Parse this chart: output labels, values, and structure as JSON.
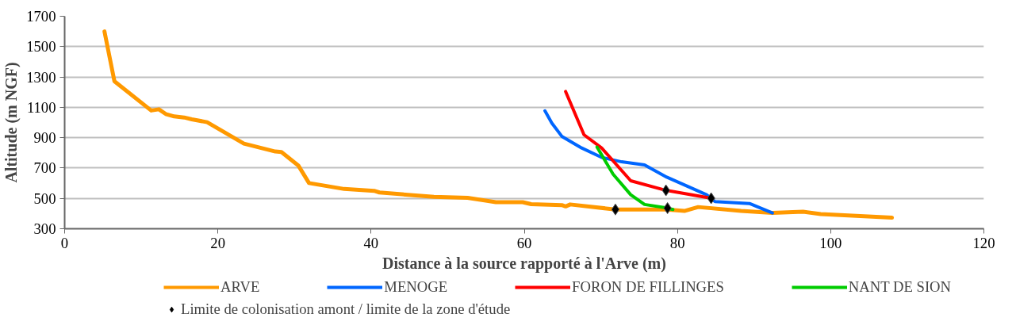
{
  "chart_data": {
    "type": "line",
    "xlabel": "Distance à la source rapporté à l'Arve (m)",
    "ylabel": "Altitude (m NGF)",
    "xlim": [
      0,
      120
    ],
    "xticks": [
      0,
      20,
      40,
      60,
      80,
      100,
      120
    ],
    "ylim": [
      300,
      1700
    ],
    "yticks": [
      300,
      500,
      700,
      900,
      1100,
      1300,
      1500,
      1700
    ],
    "grid": "y",
    "legend": "bottom",
    "line_style": "solid",
    "series": [
      {
        "name": "ARVE",
        "color": "#ff9900",
        "x": [
          5.2,
          6.5,
          11.3,
          12.3,
          13.2,
          14.3,
          15.6,
          16.6,
          18.6,
          23.4,
          27.5,
          28.3,
          30.5,
          31.9,
          36.5,
          40.4,
          41.1,
          48.2,
          52.6,
          56.3,
          59.8,
          60.9,
          64.9,
          65.4,
          66,
          71.9,
          78.6,
          80.9,
          82.7,
          88.3,
          92.4,
          96.4,
          98.7,
          108
        ],
        "values": [
          1600,
          1272,
          1079,
          1087,
          1056,
          1040,
          1033,
          1021,
          1002,
          861,
          809,
          805,
          717,
          601,
          562,
          550,
          539,
          510,
          504,
          475,
          475,
          462,
          456,
          447,
          460,
          427,
          427,
          417,
          443,
          417,
          404,
          412,
          397,
          373
        ]
      },
      {
        "name": "MENOGE",
        "color": "#0066ff",
        "x": [
          62.7,
          63.6,
          64.9,
          67.5,
          70.1,
          72.7,
          75.7,
          78.6,
          83.8,
          84.9,
          89.4,
          92.4
        ],
        "values": [
          1077,
          996,
          909,
          832,
          770,
          741,
          720,
          640,
          524,
          479,
          466,
          404
        ]
      },
      {
        "name": "FORON DE FILLINGES",
        "color": "#ff0000",
        "x": [
          65.4,
          67.8,
          70.1,
          73.9,
          78.5,
          84.4
        ],
        "values": [
          1204,
          919,
          832,
          616,
          553,
          501
        ]
      },
      {
        "name": "NANT DE SION",
        "color": "#00cc00",
        "x": [
          69.5,
          71.6,
          73.9,
          75.7,
          78.6,
          79.4
        ],
        "values": [
          838,
          659,
          524,
          460,
          437,
          427
        ]
      },
      {
        "name": "Limite de colonisation amont / limite de la zone d'étude",
        "type": "scatter",
        "marker": "diamond",
        "color": "#000000",
        "x": [
          71.9,
          78.5,
          78.7,
          84.4
        ],
        "values": [
          427,
          553,
          436,
          501
        ]
      }
    ]
  }
}
